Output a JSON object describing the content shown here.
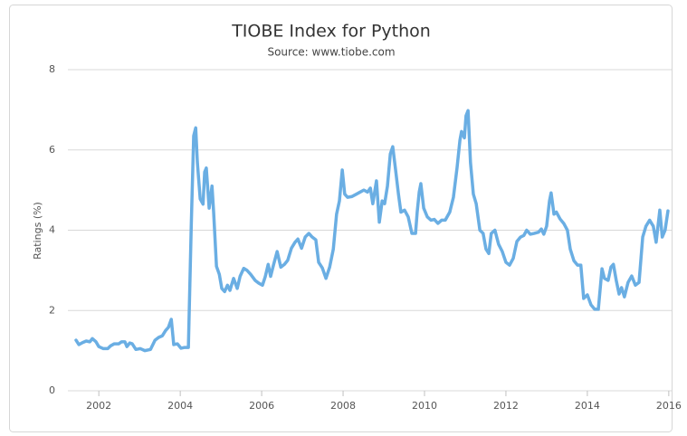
{
  "chart_data": {
    "type": "line",
    "title": "TIOBE Index for Python",
    "subtitle": "Source: www.tiobe.com",
    "y_label": "Ratings (%)",
    "xlim": [
      2001.24,
      2016.07
    ],
    "xticks": [
      2002,
      2004,
      2006,
      2008,
      2010,
      2012,
      2014,
      2016
    ],
    "ylim": [
      0,
      8
    ],
    "yticks": [
      0,
      2,
      4,
      6,
      8
    ],
    "grid": true,
    "series": [
      {
        "name": "Python",
        "color": "#6aaee3",
        "x": [
          2001.44,
          2001.51,
          2001.6,
          2001.69,
          2001.78,
          2001.84,
          2001.93,
          2002.0,
          2002.11,
          2002.22,
          2002.29,
          2002.38,
          2002.49,
          2002.56,
          2002.64,
          2002.69,
          2002.76,
          2002.82,
          2002.91,
          2003.02,
          2003.13,
          2003.27,
          2003.38,
          2003.47,
          2003.56,
          2003.64,
          2003.71,
          2003.78,
          2003.84,
          2003.93,
          2004.02,
          2004.11,
          2004.2,
          2004.27,
          2004.33,
          2004.38,
          2004.42,
          2004.49,
          2004.56,
          2004.6,
          2004.64,
          2004.71,
          2004.78,
          2004.82,
          2004.89,
          2004.96,
          2005.02,
          2005.09,
          2005.16,
          2005.22,
          2005.31,
          2005.4,
          2005.47,
          2005.56,
          2005.64,
          2005.73,
          2005.84,
          2005.93,
          2006.02,
          2006.09,
          2006.16,
          2006.22,
          2006.29,
          2006.38,
          2006.47,
          2006.56,
          2006.64,
          2006.73,
          2006.82,
          2006.89,
          2006.98,
          2007.07,
          2007.16,
          2007.24,
          2007.33,
          2007.4,
          2007.49,
          2007.58,
          2007.67,
          2007.76,
          2007.84,
          2007.91,
          2007.98,
          2008.04,
          2008.11,
          2008.22,
          2008.33,
          2008.42,
          2008.51,
          2008.6,
          2008.67,
          2008.73,
          2008.82,
          2008.89,
          2008.96,
          2009.02,
          2009.09,
          2009.16,
          2009.22,
          2009.29,
          2009.36,
          2009.42,
          2009.51,
          2009.6,
          2009.69,
          2009.78,
          2009.82,
          2009.87,
          2009.91,
          2009.98,
          2010.07,
          2010.16,
          2010.24,
          2010.33,
          2010.42,
          2010.51,
          2010.62,
          2010.71,
          2010.8,
          2010.87,
          2010.91,
          2010.98,
          2011.02,
          2011.07,
          2011.13,
          2011.2,
          2011.27,
          2011.36,
          2011.44,
          2011.51,
          2011.58,
          2011.64,
          2011.73,
          2011.82,
          2011.91,
          2012.0,
          2012.09,
          2012.18,
          2012.27,
          2012.36,
          2012.44,
          2012.51,
          2012.6,
          2012.69,
          2012.8,
          2012.87,
          2012.93,
          2013.0,
          2013.07,
          2013.11,
          2013.18,
          2013.24,
          2013.33,
          2013.42,
          2013.51,
          2013.58,
          2013.67,
          2013.76,
          2013.84,
          2013.91,
          2014.0,
          2014.09,
          2014.18,
          2014.27,
          2014.36,
          2014.42,
          2014.51,
          2014.58,
          2014.64,
          2014.71,
          2014.78,
          2014.84,
          2014.91,
          2015.0,
          2015.09,
          2015.18,
          2015.27,
          2015.36,
          2015.44,
          2015.53,
          2015.62,
          2015.69,
          2015.78,
          2015.84,
          2015.91,
          2015.98
        ],
        "values": [
          1.26,
          1.15,
          1.2,
          1.24,
          1.22,
          1.3,
          1.22,
          1.1,
          1.05,
          1.05,
          1.12,
          1.17,
          1.17,
          1.22,
          1.22,
          1.1,
          1.19,
          1.17,
          1.03,
          1.05,
          1.0,
          1.03,
          1.26,
          1.33,
          1.37,
          1.5,
          1.58,
          1.78,
          1.15,
          1.17,
          1.06,
          1.08,
          1.08,
          4.1,
          6.35,
          6.55,
          5.7,
          4.78,
          4.65,
          5.45,
          5.55,
          4.55,
          5.1,
          4.45,
          3.1,
          2.9,
          2.55,
          2.47,
          2.63,
          2.5,
          2.8,
          2.55,
          2.85,
          3.05,
          3.0,
          2.9,
          2.75,
          2.68,
          2.63,
          2.85,
          3.15,
          2.85,
          3.13,
          3.47,
          3.08,
          3.15,
          3.25,
          3.55,
          3.7,
          3.78,
          3.55,
          3.83,
          3.92,
          3.83,
          3.76,
          3.2,
          3.06,
          2.8,
          3.08,
          3.53,
          4.4,
          4.73,
          5.5,
          4.9,
          4.82,
          4.84,
          4.9,
          4.95,
          5.0,
          4.95,
          5.05,
          4.66,
          5.23,
          4.2,
          4.73,
          4.66,
          5.1,
          5.9,
          6.08,
          5.5,
          4.9,
          4.45,
          4.5,
          4.33,
          3.92,
          3.92,
          4.45,
          4.95,
          5.16,
          4.55,
          4.33,
          4.25,
          4.27,
          4.17,
          4.25,
          4.25,
          4.45,
          4.82,
          5.56,
          6.24,
          6.46,
          6.3,
          6.85,
          6.98,
          5.68,
          4.9,
          4.66,
          4.0,
          3.92,
          3.53,
          3.42,
          3.92,
          4.0,
          3.65,
          3.47,
          3.2,
          3.13,
          3.3,
          3.72,
          3.83,
          3.87,
          4.0,
          3.9,
          3.92,
          3.95,
          4.03,
          3.9,
          4.1,
          4.73,
          4.93,
          4.4,
          4.45,
          4.28,
          4.17,
          4.0,
          3.53,
          3.24,
          3.13,
          3.13,
          2.3,
          2.39,
          2.14,
          2.03,
          2.03,
          3.04,
          2.8,
          2.75,
          3.08,
          3.15,
          2.75,
          2.41,
          2.57,
          2.34,
          2.7,
          2.86,
          2.63,
          2.7,
          3.83,
          4.1,
          4.25,
          4.1,
          3.7,
          4.5,
          3.83,
          4.0,
          4.48
        ]
      }
    ]
  }
}
